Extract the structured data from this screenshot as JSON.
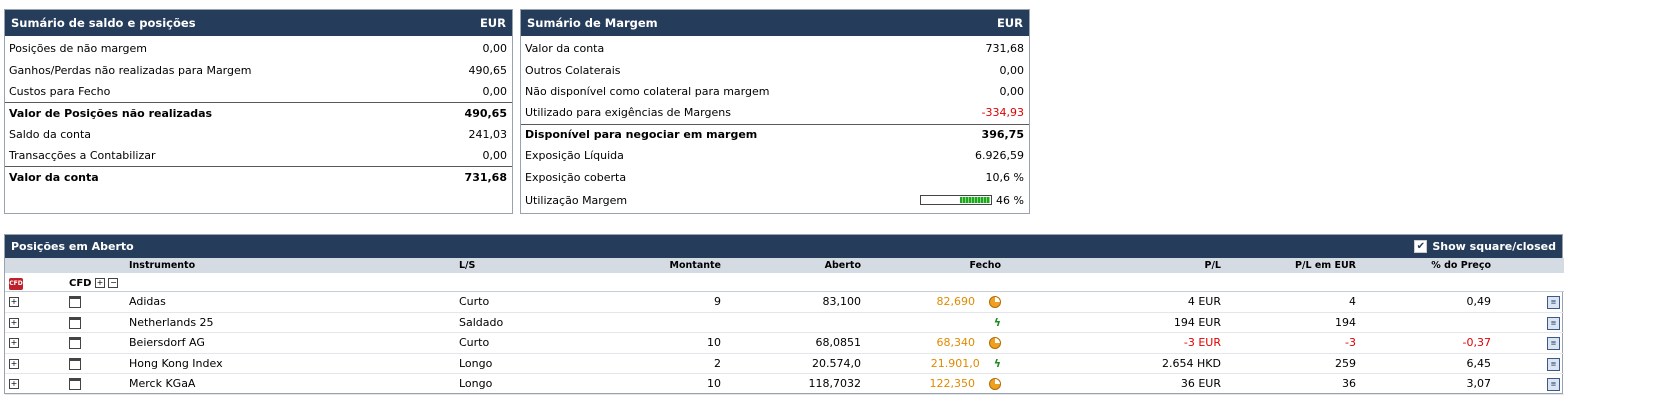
{
  "summary": {
    "title": "Sumário de saldo e posições",
    "currency": "EUR",
    "rows": [
      {
        "label": "Posições de não margem",
        "value": "0,00"
      },
      {
        "label": "Ganhos/Perdas não realizadas para Margem",
        "value": "490,65"
      },
      {
        "label": "Custos para Fecho",
        "value": "0,00"
      },
      {
        "label": "Valor de Posições não realizadas",
        "value": "490,65"
      },
      {
        "label": "Saldo da conta",
        "value": "241,03"
      },
      {
        "label": "Transacções a Contabilizar",
        "value": "0,00"
      },
      {
        "label": "Valor da conta",
        "value": "731,68"
      }
    ]
  },
  "margin": {
    "title": "Sumário de Margem",
    "currency": "EUR",
    "rows": [
      {
        "label": "Valor da conta",
        "value": "731,68"
      },
      {
        "label": "Outros Colaterais",
        "value": "0,00"
      },
      {
        "label": "Não disponível como colateral para margem",
        "value": "0,00"
      },
      {
        "label": "Utilizado para exigências de Margens",
        "value": "-334,93"
      },
      {
        "label": "Disponível para negociar em margem",
        "value": "396,75"
      },
      {
        "label": "Exposição Líquida",
        "value": "6.926,59"
      },
      {
        "label": "Exposição coberta",
        "value": "10,6 %"
      },
      {
        "label": "Utilização Margem",
        "value": "46 %"
      }
    ],
    "utilization_fraction": 0.46
  },
  "positions": {
    "title": "Posições em Aberto",
    "show_closed_label": "Show square/closed",
    "show_closed_checked": true,
    "columns": [
      "Instrumento",
      "L/S",
      "Montante",
      "Aberto",
      "Fecho",
      "P/L",
      "P/L em EUR",
      "% do Preço"
    ],
    "group_label": "CFD",
    "rows": [
      {
        "instrument": "Adidas",
        "ls": "Curto",
        "amount": "9",
        "open": "83,100",
        "close": "82,690",
        "status_icon": "pie-icon",
        "pl": "4 EUR",
        "pl_eur": "4",
        "pct": "0,49",
        "negative": false
      },
      {
        "instrument": "Netherlands 25",
        "ls": "Saldado",
        "amount": "",
        "open": "",
        "close": "",
        "status_icon": "lightning-icon",
        "pl": "194 EUR",
        "pl_eur": "194",
        "pct": "",
        "negative": false
      },
      {
        "instrument": "Beiersdorf AG",
        "ls": "Curto",
        "amount": "10",
        "open": "68,0851",
        "close": "68,340",
        "status_icon": "pie-icon",
        "pl": "-3 EUR",
        "pl_eur": "-3",
        "pct": "-0,37",
        "negative": true
      },
      {
        "instrument": "Hong Kong Index",
        "ls": "Longo",
        "amount": "2",
        "open": "20.574,0",
        "close": "21.901,0",
        "status_icon": "lightning-icon",
        "pl": "2.654 HKD",
        "pl_eur": "259",
        "pct": "6,45",
        "negative": false
      },
      {
        "instrument": "Merck KGaA",
        "ls": "Longo",
        "amount": "10",
        "open": "118,7032",
        "close": "122,350",
        "status_icon": "pie-icon",
        "pl": "36 EUR",
        "pl_eur": "36",
        "pct": "3,07",
        "negative": false
      }
    ]
  },
  "colors": {
    "header_bg": "#263c5b",
    "negative": "#e00000",
    "close_price": "#e08a00",
    "bar_green": "#1fa61f"
  }
}
